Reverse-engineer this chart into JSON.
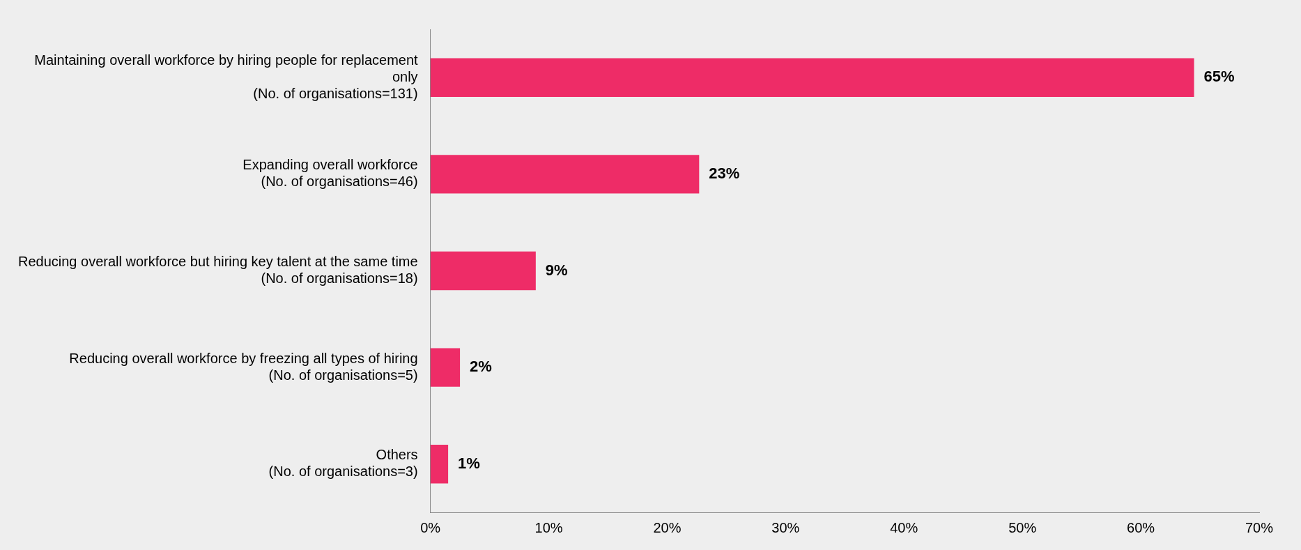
{
  "chart_data": {
    "type": "bar",
    "orientation": "horizontal",
    "categories": [
      "Maintaining overall workforce by hiring people for replacement only (No. of organisations=131)",
      "Expanding overall workforce (No. of organisations=46)",
      "Reducing overall workforce but hiring key talent at the same time (No. of organisations=18)",
      "Reducing overall workforce by freezing all types of hiring (No. of organisations=5)",
      "Others (No. of organisations=3)"
    ],
    "values": [
      64.5,
      22.7,
      8.9,
      2.5,
      1.5
    ],
    "value_labels": [
      "65%",
      "23%",
      "9%",
      "2%",
      "1%"
    ],
    "color": "#ee2c67",
    "xlim": [
      0,
      70
    ],
    "xticks": [
      {
        "value": 0,
        "label": "0%"
      },
      {
        "value": 10,
        "label": "10%"
      },
      {
        "value": 20,
        "label": "20%"
      },
      {
        "value": 30,
        "label": "30%"
      },
      {
        "value": 40,
        "label": "40%"
      },
      {
        "value": 50,
        "label": "50%"
      },
      {
        "value": 60,
        "label": "60%"
      },
      {
        "value": 70,
        "label": "70%"
      }
    ],
    "grid": false,
    "legend": false
  }
}
